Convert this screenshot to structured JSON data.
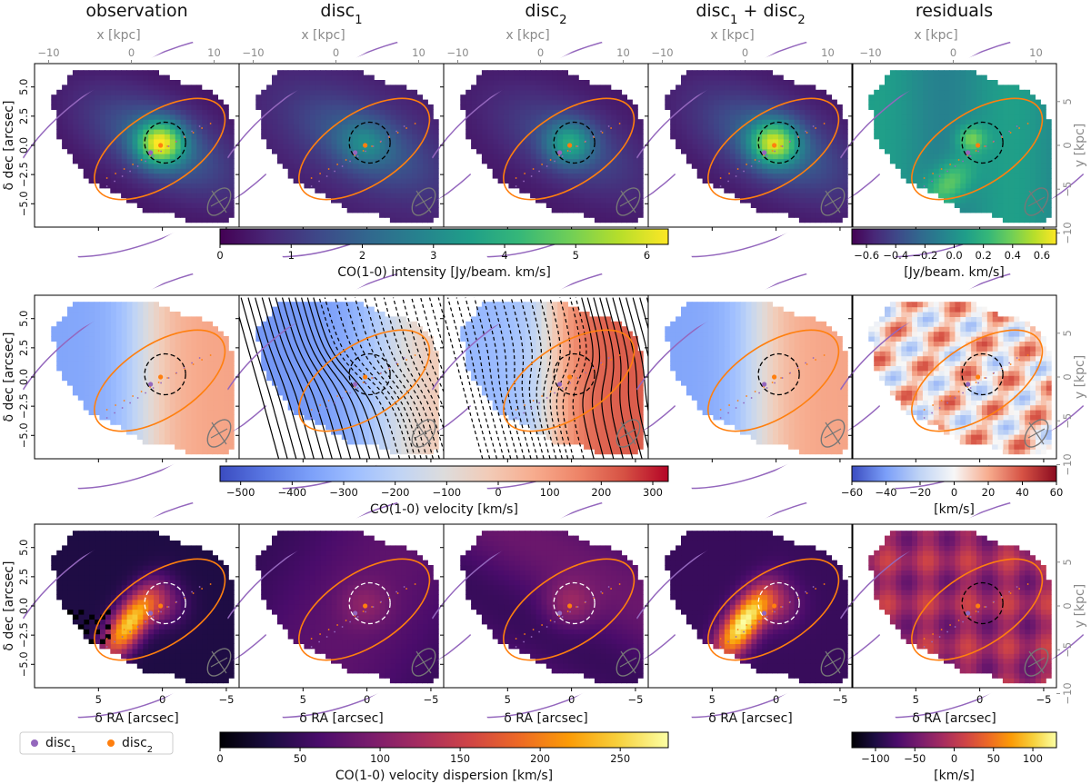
{
  "chart_data": {
    "type": "heatmap",
    "columns": [
      {
        "title": "observation"
      },
      {
        "title": "disc",
        "sub": "1"
      },
      {
        "title": "disc",
        "sub": "2"
      },
      {
        "title": "disc",
        "sub": "1",
        "title_tail": " + disc",
        "sub2": "2"
      },
      {
        "title": "residuals"
      }
    ],
    "rows": [
      {
        "quantity": "intensity",
        "colormap": "viridis",
        "colorbar": {
          "label": "CO(1-0) intensity [Jy/beam. km/s]",
          "ticks": [
            "0",
            "1",
            "2",
            "3",
            "4",
            "5",
            "6"
          ],
          "range": [
            0,
            6.3
          ]
        },
        "residual_colorbar": {
          "label": "[Jy/beam. km/s]",
          "ticks": [
            "−0.6",
            "−0.4",
            "−0.2",
            "0.0",
            "0.2",
            "0.4",
            "0.6"
          ],
          "range": [
            -0.7,
            0.7
          ]
        }
      },
      {
        "quantity": "velocity",
        "colormap": "coolwarm",
        "colorbar": {
          "label": "CO(1-0) velocity [km/s]",
          "ticks": [
            "−500",
            "−400",
            "−300",
            "−200",
            "−100",
            "0",
            "100",
            "200",
            "300"
          ],
          "range": [
            -540,
            330
          ]
        },
        "residual_colorbar": {
          "label": "[km/s]",
          "ticks": [
            "−60",
            "−40",
            "−20",
            "0",
            "20",
            "40",
            "60"
          ],
          "range": [
            -60,
            60
          ]
        }
      },
      {
        "quantity": "velocity dispersion",
        "colormap": "inferno",
        "colorbar": {
          "label": "CO(1-0) velocity dispersion [km/s]",
          "ticks": [
            "0",
            "50",
            "100",
            "150",
            "200",
            "250"
          ],
          "range": [
            0,
            280
          ]
        },
        "residual_colorbar": {
          "label": "[km/s]",
          "ticks": [
            "−100",
            "−50",
            "0",
            "50",
            "100"
          ],
          "range": [
            -130,
            130
          ]
        }
      }
    ],
    "xlabel": "δ RA [arcsec]",
    "ylabel": "δ dec [arcsec]",
    "x_ticks": [
      "5",
      "0",
      "−5"
    ],
    "x_range": [
      10,
      -6
    ],
    "y_ticks": [
      "5.0",
      "2.5",
      "0.0",
      "−2.5",
      "−5.0"
    ],
    "y_range": [
      -7,
      7
    ],
    "top_axis": {
      "label": "x [kpc]",
      "ticks": [
        "−10",
        "0",
        "10"
      ]
    },
    "right_axis": {
      "label": "y [kpc]",
      "ticks": [
        "5",
        "0",
        "−5",
        "−10"
      ]
    },
    "legend": [
      {
        "label": "disc",
        "sub": "1",
        "color": "#9467bd"
      },
      {
        "label": "disc",
        "sub": "2",
        "color": "#ff7f0e"
      }
    ],
    "overlay_colors": {
      "outer_ellipse": "#9467bd",
      "inner_ellipse": "#ff7f0e",
      "circle": "#000000"
    }
  }
}
